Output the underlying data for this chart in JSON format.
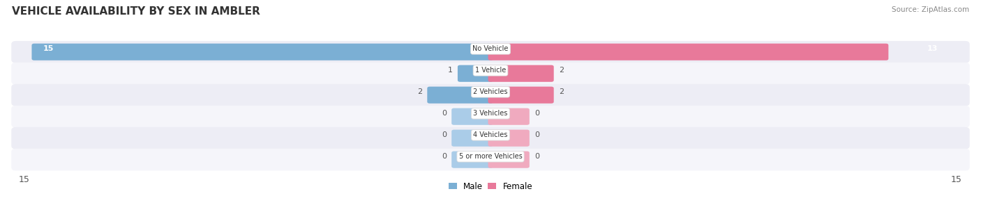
{
  "title": "VEHICLE AVAILABILITY BY SEX IN AMBLER",
  "source": "Source: ZipAtlas.com",
  "categories": [
    "No Vehicle",
    "1 Vehicle",
    "2 Vehicles",
    "3 Vehicles",
    "4 Vehicles",
    "5 or more Vehicles"
  ],
  "male_values": [
    15,
    1,
    2,
    0,
    0,
    0
  ],
  "female_values": [
    13,
    2,
    2,
    0,
    0,
    0
  ],
  "male_color": "#7BAFD4",
  "female_color": "#E8799A",
  "male_color_stub": "#AACCE8",
  "female_color_stub": "#F0AABF",
  "row_bg_color": "#EDEDF5",
  "row_bg_alt": "#F5F5FA",
  "max_value": 15,
  "legend_male": "Male",
  "legend_female": "Female",
  "title_fontsize": 11,
  "source_fontsize": 7.5,
  "value_fontsize": 8,
  "label_fontsize": 7
}
